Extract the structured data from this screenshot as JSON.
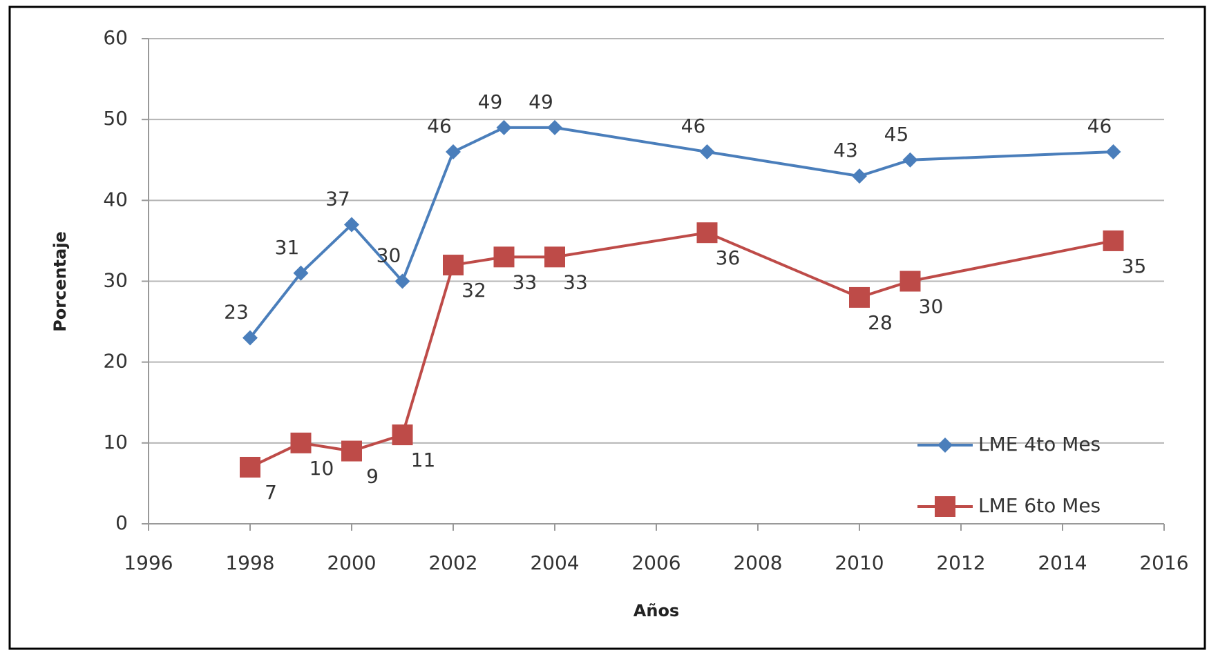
{
  "chart_data": {
    "type": "line",
    "x_label": "Años",
    "y_label": "Porcentaje",
    "x": [
      1998,
      1999,
      2000,
      2001,
      2002,
      2003,
      2004,
      2007,
      2010,
      2011,
      2015
    ],
    "series": [
      {
        "name": "LME 4to Mes",
        "color": "#4a7ebb",
        "marker": "diamond",
        "values": [
          23,
          31,
          37,
          30,
          46,
          49,
          49,
          46,
          43,
          45,
          46
        ]
      },
      {
        "name": "LME 6to Mes",
        "color": "#be4b48",
        "marker": "square",
        "values": [
          7,
          10,
          9,
          11,
          32,
          33,
          33,
          36,
          28,
          30,
          35
        ]
      }
    ],
    "xlim": [
      1996,
      2016
    ],
    "xticks": [
      1996,
      1998,
      2000,
      2002,
      2004,
      2006,
      2008,
      2010,
      2012,
      2014,
      2016
    ],
    "ylim": [
      0,
      60
    ],
    "yticks": [
      0,
      10,
      20,
      30,
      40,
      50,
      60
    ],
    "grid": true,
    "legend": "right"
  }
}
